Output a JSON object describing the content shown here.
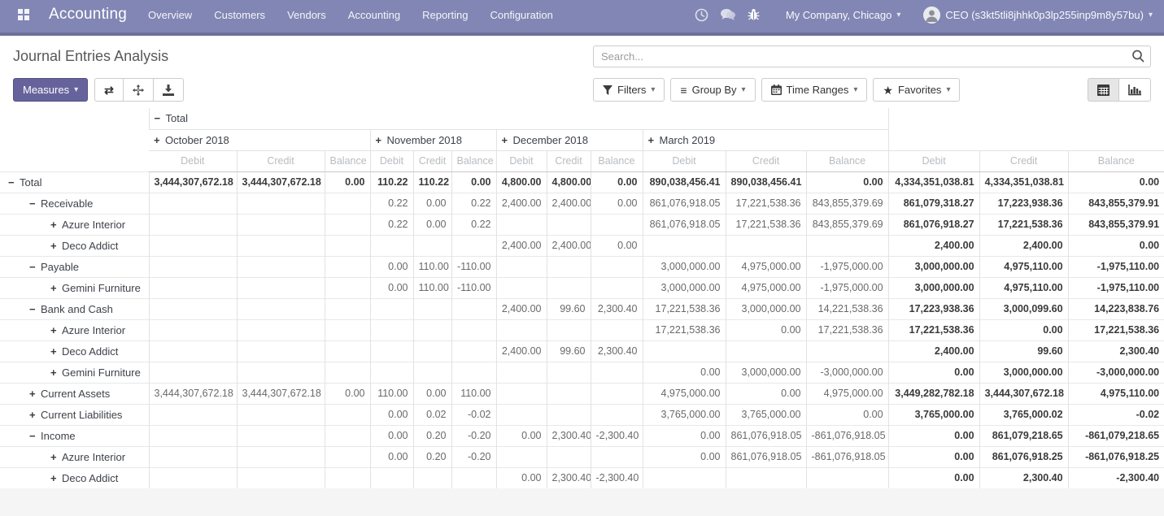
{
  "navbar": {
    "app_name": "Accounting",
    "menu": [
      "Overview",
      "Customers",
      "Vendors",
      "Accounting",
      "Reporting",
      "Configuration"
    ],
    "company": "My Company, Chicago",
    "user": "CEO (s3kt5tli8jhhk0p3lp255inp9m8y57bu)"
  },
  "control_panel": {
    "title": "Journal Entries Analysis",
    "search_placeholder": "Search...",
    "measures_label": "Measures",
    "filters_label": "Filters",
    "group_by_label": "Group By",
    "time_ranges_label": "Time Ranges",
    "favorites_label": "Favorites"
  },
  "colors": {
    "navbar": "#8286b4",
    "accent": "#66639c",
    "active_view_bg": "#e6e6e6"
  },
  "pivot": {
    "top_group": {
      "toggle": "minus",
      "label": "Total"
    },
    "col_groups": [
      {
        "toggle": "plus",
        "label": "October 2018"
      },
      {
        "toggle": "plus",
        "label": "November 2018"
      },
      {
        "toggle": "plus",
        "label": "December 2018"
      },
      {
        "toggle": "plus",
        "label": "March 2019"
      }
    ],
    "measures": [
      "Debit",
      "Credit",
      "Balance"
    ],
    "rows": [
      {
        "label": "Total",
        "level": 0,
        "toggle": "minus",
        "bold": true,
        "values": [
          "3,444,307,672.18",
          "3,444,307,672.18",
          "0.00",
          "110.22",
          "110.22",
          "0.00",
          "4,800.00",
          "4,800.00",
          "0.00",
          "890,038,456.41",
          "890,038,456.41",
          "0.00",
          "4,334,351,038.81",
          "4,334,351,038.81",
          "0.00"
        ]
      },
      {
        "label": "Receivable",
        "level": 1,
        "toggle": "minus",
        "bold": false,
        "values": [
          "",
          "",
          "",
          "0.22",
          "0.00",
          "0.22",
          "2,400.00",
          "2,400.00",
          "0.00",
          "861,076,918.05",
          "17,221,538.36",
          "843,855,379.69",
          "861,079,318.27",
          "17,223,938.36",
          "843,855,379.91"
        ]
      },
      {
        "label": "Azure Interior",
        "level": 2,
        "toggle": "plus",
        "bold": false,
        "values": [
          "",
          "",
          "",
          "0.22",
          "0.00",
          "0.22",
          "",
          "",
          "",
          "861,076,918.05",
          "17,221,538.36",
          "843,855,379.69",
          "861,076,918.27",
          "17,221,538.36",
          "843,855,379.91"
        ]
      },
      {
        "label": "Deco Addict",
        "level": 2,
        "toggle": "plus",
        "bold": false,
        "values": [
          "",
          "",
          "",
          "",
          "",
          "",
          "2,400.00",
          "2,400.00",
          "0.00",
          "",
          "",
          "",
          "2,400.00",
          "2,400.00",
          "0.00"
        ]
      },
      {
        "label": "Payable",
        "level": 1,
        "toggle": "minus",
        "bold": false,
        "values": [
          "",
          "",
          "",
          "0.00",
          "110.00",
          "-110.00",
          "",
          "",
          "",
          "3,000,000.00",
          "4,975,000.00",
          "-1,975,000.00",
          "3,000,000.00",
          "4,975,110.00",
          "-1,975,110.00"
        ]
      },
      {
        "label": "Gemini Furniture",
        "level": 2,
        "toggle": "plus",
        "bold": false,
        "values": [
          "",
          "",
          "",
          "0.00",
          "110.00",
          "-110.00",
          "",
          "",
          "",
          "3,000,000.00",
          "4,975,000.00",
          "-1,975,000.00",
          "3,000,000.00",
          "4,975,110.00",
          "-1,975,110.00"
        ]
      },
      {
        "label": "Bank and Cash",
        "level": 1,
        "toggle": "minus",
        "bold": false,
        "values": [
          "",
          "",
          "",
          "",
          "",
          "",
          "2,400.00",
          "99.60",
          "2,300.40",
          "17,221,538.36",
          "3,000,000.00",
          "14,221,538.36",
          "17,223,938.36",
          "3,000,099.60",
          "14,223,838.76"
        ]
      },
      {
        "label": "Azure Interior",
        "level": 2,
        "toggle": "plus",
        "bold": false,
        "values": [
          "",
          "",
          "",
          "",
          "",
          "",
          "",
          "",
          "",
          "17,221,538.36",
          "0.00",
          "17,221,538.36",
          "17,221,538.36",
          "0.00",
          "17,221,538.36"
        ]
      },
      {
        "label": "Deco Addict",
        "level": 2,
        "toggle": "plus",
        "bold": false,
        "values": [
          "",
          "",
          "",
          "",
          "",
          "",
          "2,400.00",
          "99.60",
          "2,300.40",
          "",
          "",
          "",
          "2,400.00",
          "99.60",
          "2,300.40"
        ]
      },
      {
        "label": "Gemini Furniture",
        "level": 2,
        "toggle": "plus",
        "bold": false,
        "values": [
          "",
          "",
          "",
          "",
          "",
          "",
          "",
          "",
          "",
          "0.00",
          "3,000,000.00",
          "-3,000,000.00",
          "0.00",
          "3,000,000.00",
          "-3,000,000.00"
        ]
      },
      {
        "label": "Current Assets",
        "level": 1,
        "toggle": "plus",
        "bold": false,
        "values": [
          "3,444,307,672.18",
          "3,444,307,672.18",
          "0.00",
          "110.00",
          "0.00",
          "110.00",
          "",
          "",
          "",
          "4,975,000.00",
          "0.00",
          "4,975,000.00",
          "3,449,282,782.18",
          "3,444,307,672.18",
          "4,975,110.00"
        ]
      },
      {
        "label": "Current Liabilities",
        "level": 1,
        "toggle": "plus",
        "bold": false,
        "values": [
          "",
          "",
          "",
          "0.00",
          "0.02",
          "-0.02",
          "",
          "",
          "",
          "3,765,000.00",
          "3,765,000.00",
          "0.00",
          "3,765,000.00",
          "3,765,000.02",
          "-0.02"
        ]
      },
      {
        "label": "Income",
        "level": 1,
        "toggle": "minus",
        "bold": false,
        "values": [
          "",
          "",
          "",
          "0.00",
          "0.20",
          "-0.20",
          "0.00",
          "2,300.40",
          "-2,300.40",
          "0.00",
          "861,076,918.05",
          "-861,076,918.05",
          "0.00",
          "861,079,218.65",
          "-861,079,218.65"
        ]
      },
      {
        "label": "Azure Interior",
        "level": 2,
        "toggle": "plus",
        "bold": false,
        "values": [
          "",
          "",
          "",
          "0.00",
          "0.20",
          "-0.20",
          "",
          "",
          "",
          "0.00",
          "861,076,918.05",
          "-861,076,918.05",
          "0.00",
          "861,076,918.25",
          "-861,076,918.25"
        ]
      },
      {
        "label": "Deco Addict",
        "level": 2,
        "toggle": "plus",
        "bold": false,
        "values": [
          "",
          "",
          "",
          "",
          "",
          "",
          "0.00",
          "2,300.40",
          "-2,300.40",
          "",
          "",
          "",
          "0.00",
          "2,300.40",
          "-2,300.40"
        ]
      }
    ]
  }
}
